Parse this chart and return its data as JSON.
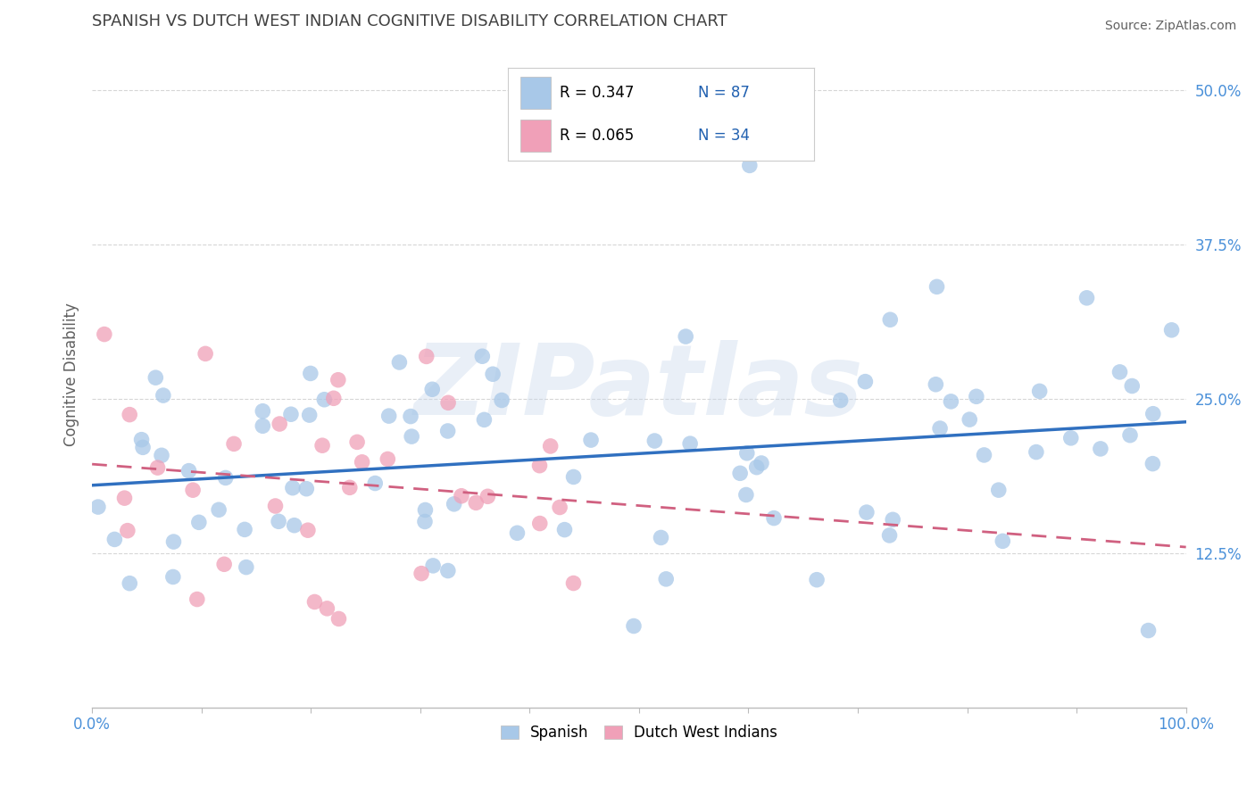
{
  "title": "SPANISH VS DUTCH WEST INDIAN COGNITIVE DISABILITY CORRELATION CHART",
  "source": "Source: ZipAtlas.com",
  "ylabel": "Cognitive Disability",
  "xlim": [
    0.0,
    1.0
  ],
  "ylim": [
    0.0,
    0.54
  ],
  "yticks": [
    0.125,
    0.25,
    0.375,
    0.5
  ],
  "ytick_labels": [
    "12.5%",
    "25.0%",
    "37.5%",
    "50.0%"
  ],
  "spanish_color": "#A8C8E8",
  "dutch_color": "#F0A0B8",
  "trend_blue": "#3070C0",
  "trend_pink": "#D06080",
  "R_spanish": 0.347,
  "N_spanish": 87,
  "R_dutch": 0.065,
  "N_dutch": 34,
  "watermark": "ZIPatlas",
  "background_color": "#FFFFFF",
  "grid_color": "#CCCCCC",
  "title_color": "#404040",
  "axis_label_color": "#606060",
  "tick_color": "#4A90D9",
  "legend_text_color": "#2060B0",
  "sp_seed": 42,
  "dw_seed": 7
}
